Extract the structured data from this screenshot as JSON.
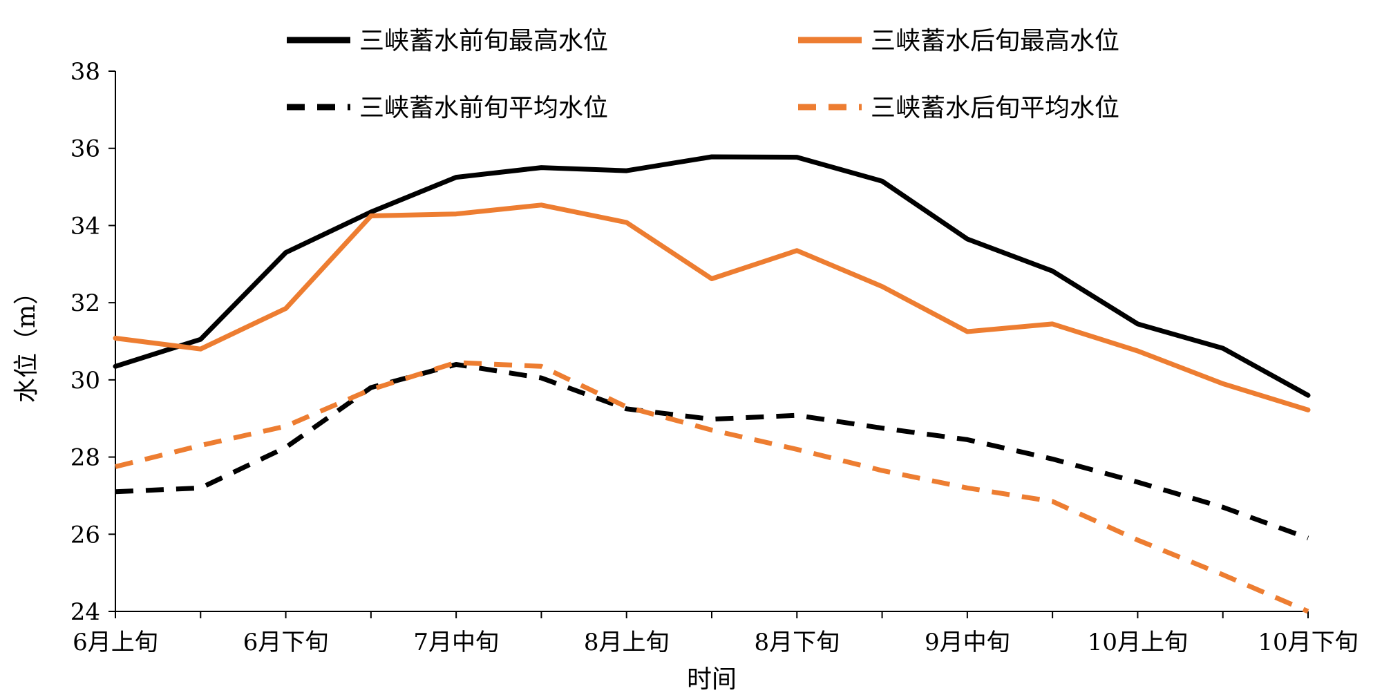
{
  "chart_data": {
    "type": "line",
    "title": "",
    "xlabel": "时间",
    "ylabel": "水位（m）",
    "ylim": [
      24,
      38
    ],
    "yticks": [
      "24",
      "26",
      "28",
      "30",
      "32",
      "34",
      "36",
      "38"
    ],
    "xlim": [
      0,
      14
    ],
    "categories": [
      "6月上旬",
      "6月下旬",
      "7月中旬",
      "8月上旬",
      "8月下旬",
      "9月中旬",
      "10月上旬",
      "10月下旬"
    ],
    "category_positions": [
      0,
      2,
      4,
      6,
      8,
      10,
      12,
      14
    ],
    "x": [
      0,
      1,
      2,
      3,
      4,
      5,
      6,
      7,
      8,
      9,
      10,
      11,
      12,
      13,
      14
    ],
    "legend_position": "top",
    "series": [
      {
        "name": "三峡蓄水前旬最高水位",
        "color": "#000000",
        "style": "solid",
        "values": [
          30.35,
          31.05,
          33.3,
          34.35,
          35.25,
          35.5,
          35.42,
          35.78,
          35.77,
          35.15,
          33.65,
          32.82,
          31.45,
          30.82,
          29.6
        ]
      },
      {
        "name": "三峡蓄水后旬最高水位",
        "color": "#ED7D31",
        "style": "solid",
        "values": [
          31.08,
          30.8,
          31.85,
          34.25,
          34.3,
          34.53,
          34.08,
          32.62,
          33.35,
          32.42,
          31.25,
          31.45,
          30.75,
          29.9,
          29.22
        ]
      },
      {
        "name": "三峡蓄水前旬平均水位",
        "color": "#000000",
        "style": "dashed",
        "values": [
          27.1,
          27.2,
          28.25,
          29.8,
          30.4,
          30.05,
          29.25,
          28.98,
          29.08,
          28.75,
          28.45,
          27.95,
          27.35,
          26.7,
          25.9
        ]
      },
      {
        "name": "三峡蓄水后旬平均水位",
        "color": "#ED7D31",
        "style": "dashed",
        "values": [
          27.75,
          28.3,
          28.8,
          29.75,
          30.45,
          30.35,
          29.3,
          28.7,
          28.2,
          27.65,
          27.2,
          26.85,
          25.85,
          24.95,
          24.0
        ]
      }
    ]
  }
}
